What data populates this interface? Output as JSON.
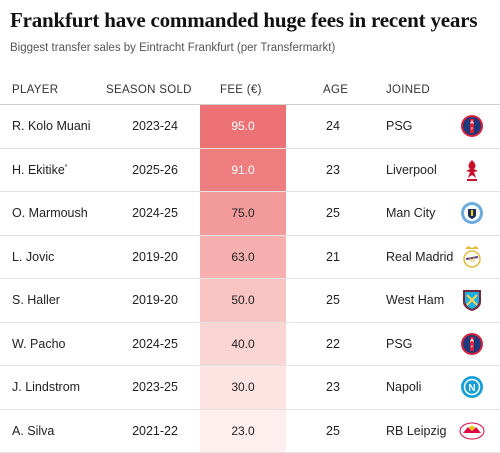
{
  "title": "Frankfurt have commanded huge fees in recent years",
  "subtitle": "Biggest transfer sales by Eintracht Frankfurt (per Transfermarkt)",
  "columns": {
    "player": "PLAYER",
    "season": "SEASON SOLD",
    "fee": "FEE (€)",
    "age": "AGE",
    "joined": "JOINED"
  },
  "rows": [
    {
      "player": "R. Kolo Muani",
      "asterisk": "",
      "season": "2023-24",
      "fee": "95.0",
      "age": "24",
      "joined": "PSG",
      "badge": "psg-crest-icon",
      "fee_color": "#ec7276",
      "fee_text_color": "#ffffff"
    },
    {
      "player": "H. Ekitike",
      "asterisk": "*",
      "season": "2025-26",
      "fee": "91.0",
      "age": "23",
      "joined": "Liverpool",
      "badge": "liverpool-crest-icon",
      "fee_color": "#ee7d80",
      "fee_text_color": "#ffffff"
    },
    {
      "player": "O. Marmoush",
      "asterisk": "",
      "season": "2024-25",
      "fee": "75.0",
      "age": "25",
      "joined": "Man City",
      "badge": "man-city-crest-icon",
      "fee_color": "#f39a9b",
      "fee_text_color": "#222222"
    },
    {
      "player": "L. Jovic",
      "asterisk": "",
      "season": "2019-20",
      "fee": "63.0",
      "age": "21",
      "joined": "Real Madrid",
      "badge": "real-madrid-crest-icon",
      "fee_color": "#f6b0b0",
      "fee_text_color": "#222222"
    },
    {
      "player": "S. Haller",
      "asterisk": "",
      "season": "2019-20",
      "fee": "50.0",
      "age": "25",
      "joined": "West Ham",
      "badge": "west-ham-crest-icon",
      "fee_color": "#f9c4c3",
      "fee_text_color": "#222222"
    },
    {
      "player": "W. Pacho",
      "asterisk": "",
      "season": "2024-25",
      "fee": "40.0",
      "age": "22",
      "joined": "PSG",
      "badge": "psg-crest-icon",
      "fee_color": "#fbd5d4",
      "fee_text_color": "#222222"
    },
    {
      "player": "J. Lindstrom",
      "asterisk": "",
      "season": "2023-25",
      "fee": "30.0",
      "age": "23",
      "joined": "Napoli",
      "badge": "napoli-crest-icon",
      "fee_color": "#fde3e2",
      "fee_text_color": "#222222"
    },
    {
      "player": "A. Silva",
      "asterisk": "",
      "season": "2021-22",
      "fee": "23.0",
      "age": "25",
      "joined": "RB Leipzig",
      "badge": "rb-leipzig-crest-icon",
      "fee_color": "#feeeed",
      "fee_text_color": "#222222"
    }
  ]
}
